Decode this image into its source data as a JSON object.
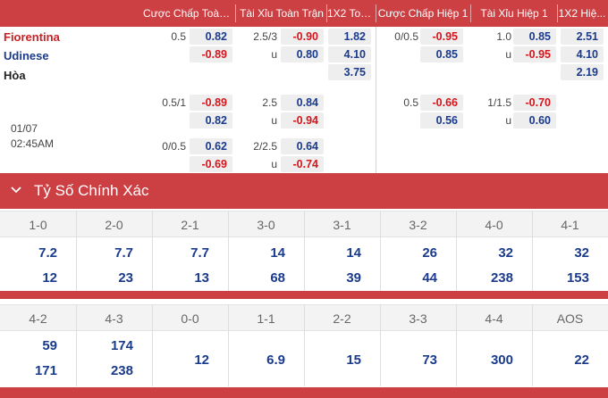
{
  "odds_header": {
    "handicap_full": "Cược Chấp Toàn ...",
    "ou_full": "Tài Xỉu Toàn Trận",
    "x12_full": "1X2 Toà...",
    "handicap_h1": "Cược Chấp Hiệp 1",
    "ou_h1": "Tài Xỉu Hiệp 1",
    "x12_h1": "1X2 Hiệ..."
  },
  "match": {
    "home": "Fiorentina",
    "away": "Udinese",
    "draw": "Hòa",
    "date": "01/07",
    "time": "02:45AM"
  },
  "odds": {
    "hc_full": [
      {
        "line": "0.5",
        "home": "0.82",
        "away": "-0.89"
      },
      {
        "line": "0.5/1",
        "home": "-0.89",
        "away": "0.82"
      },
      {
        "line": "0/0.5",
        "home": "0.62",
        "away": "-0.69"
      }
    ],
    "ou_full": [
      {
        "line": "2.5/3",
        "over": "-0.90",
        "under_label": "u",
        "under": "0.80"
      },
      {
        "line": "2.5",
        "over": "0.84",
        "under_label": "u",
        "under": "-0.94"
      },
      {
        "line": "2/2.5",
        "over": "0.64",
        "under_label": "u",
        "under": "-0.74"
      }
    ],
    "x12_full": {
      "home": "1.82",
      "away": "4.10",
      "draw": "3.75"
    },
    "hc_h1": [
      {
        "line": "0/0.5",
        "home": "-0.95",
        "away": "0.85"
      },
      {
        "line": "0.5",
        "home": "-0.66",
        "away": "0.56"
      }
    ],
    "ou_h1": [
      {
        "line": "1.0",
        "over": "0.85",
        "under_label": "u",
        "under": "-0.95"
      },
      {
        "line": "1/1.5",
        "over": "-0.70",
        "under_label": "u",
        "under": "0.60"
      }
    ],
    "x12_h1": {
      "home": "2.51",
      "away": "4.10",
      "draw": "2.19"
    }
  },
  "exact_score": {
    "title": "Tỷ Số Chính Xác",
    "row1": [
      {
        "score": "1-0",
        "home": "7.2",
        "away": "12"
      },
      {
        "score": "2-0",
        "home": "7.7",
        "away": "23"
      },
      {
        "score": "2-1",
        "home": "7.7",
        "away": "13"
      },
      {
        "score": "3-0",
        "home": "14",
        "away": "68"
      },
      {
        "score": "3-1",
        "home": "14",
        "away": "39"
      },
      {
        "score": "3-2",
        "home": "26",
        "away": "44"
      },
      {
        "score": "4-0",
        "home": "32",
        "away": "238"
      },
      {
        "score": "4-1",
        "home": "32",
        "away": "153"
      }
    ],
    "row2": [
      {
        "score": "4-2",
        "home": "59",
        "away": "171"
      },
      {
        "score": "4-3",
        "home": "174",
        "away": "238"
      },
      {
        "score": "0-0",
        "value": "12"
      },
      {
        "score": "1-1",
        "value": "6.9"
      },
      {
        "score": "2-2",
        "value": "15"
      },
      {
        "score": "3-3",
        "value": "73"
      },
      {
        "score": "4-4",
        "value": "300"
      },
      {
        "score": "AOS",
        "value": "22"
      }
    ]
  },
  "colors": {
    "accent_red": "#cc3f43",
    "odds_negative": "#d4161c",
    "odds_positive": "#1a3a8c",
    "home_team": "#cc1f24",
    "away_team": "#1a3a8c"
  },
  "icons": {
    "collapse": "chevron-down-icon"
  }
}
